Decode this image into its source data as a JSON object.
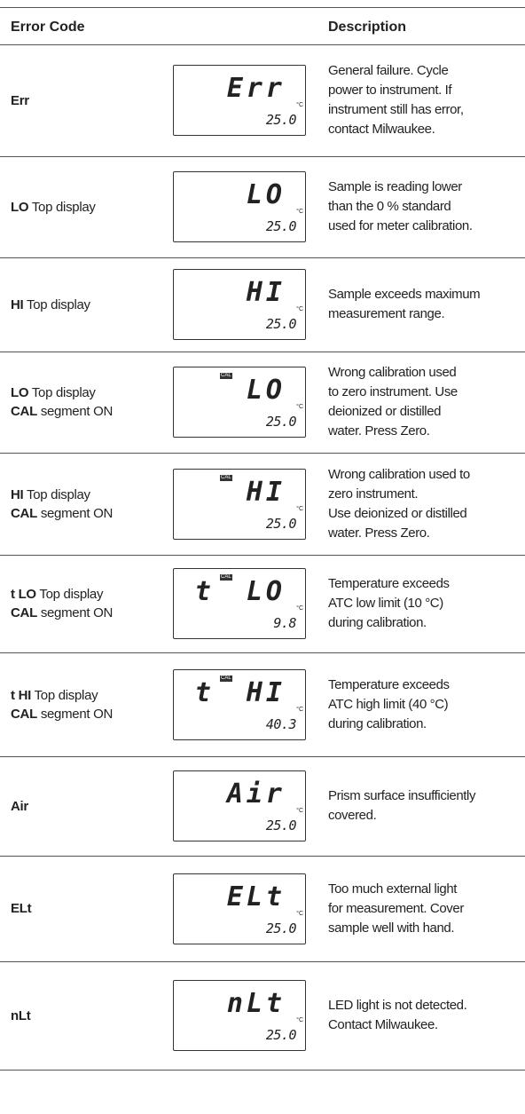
{
  "header": {
    "code": "Error Code",
    "description": "Description"
  },
  "rows": [
    {
      "code": [
        {
          "bold": "Err",
          "text": ""
        }
      ],
      "display": {
        "top": "Err",
        "cal": false,
        "temp": "25.0",
        "unit": "°C"
      },
      "description": [
        "General failure. Cycle",
        "power to instrument. If",
        "instrument still has error,",
        "contact Milwaukee."
      ]
    },
    {
      "code": [
        {
          "bold": "LO",
          "text": "Top display"
        }
      ],
      "display": {
        "top": "LO",
        "cal": false,
        "temp": "25.0",
        "unit": "°C"
      },
      "description": [
        "Sample is reading lower",
        "than the 0 % standard",
        "used for meter calibration."
      ]
    },
    {
      "code": [
        {
          "bold": "HI",
          "text": "Top display"
        }
      ],
      "display": {
        "top": "HI",
        "cal": false,
        "temp": "25.0",
        "unit": "°C"
      },
      "description": [
        "Sample exceeds maximum",
        "measurement range."
      ]
    },
    {
      "code": [
        {
          "bold": "LO",
          "text": "Top display"
        },
        {
          "bold": "CAL",
          "text": "segment ON"
        }
      ],
      "display": {
        "top": "LO",
        "cal": "CAL",
        "temp": "25.0",
        "unit": "°C"
      },
      "description": [
        "Wrong calibration used",
        "to zero instrument. Use",
        "deionized or distilled",
        "water. Press Zero."
      ]
    },
    {
      "code": [
        {
          "bold": "HI",
          "text": "Top display"
        },
        {
          "bold": "CAL",
          "text": "segment ON"
        }
      ],
      "display": {
        "top": "HI",
        "cal": "CAL",
        "temp": "25.0",
        "unit": "°C"
      },
      "description": [
        "Wrong calibration used to",
        "zero instrument.",
        "Use deionized or distilled",
        "water. Press Zero."
      ]
    },
    {
      "code": [
        {
          "bold": "t LO",
          "text": "Top display"
        },
        {
          "bold": "CAL",
          "text": "segment ON"
        }
      ],
      "display": {
        "top": "t LO",
        "cal": "CAL",
        "temp": "9.8",
        "unit": "°C"
      },
      "description": [
        "Temperature exceeds",
        "ATC low limit (10 °C)",
        "during calibration."
      ]
    },
    {
      "code": [
        {
          "bold": "t HI",
          "text": "Top display"
        },
        {
          "bold": "CAL",
          "text": "segment ON"
        }
      ],
      "display": {
        "top": "t HI",
        "cal": "CAL",
        "temp": "40.3",
        "unit": "°C"
      },
      "description": [
        "Temperature exceeds",
        "ATC high limit (40 °C)",
        "during calibration."
      ]
    },
    {
      "code": [
        {
          "bold": "Air",
          "text": ""
        }
      ],
      "display": {
        "top": "Air",
        "cal": false,
        "temp": "25.0",
        "unit": "°C"
      },
      "description": [
        "Prism surface insufficiently",
        "covered."
      ]
    },
    {
      "code": [
        {
          "bold": "ELt",
          "text": ""
        }
      ],
      "display": {
        "top": "ELt",
        "cal": false,
        "temp": "25.0",
        "unit": "°C"
      },
      "description": [
        "Too much external light",
        "for measurement. Cover",
        "sample well with hand."
      ]
    },
    {
      "code": [
        {
          "bold": "nLt",
          "text": ""
        }
      ],
      "display": {
        "top": "nLt",
        "cal": false,
        "temp": "25.0",
        "unit": "°C"
      },
      "description": [
        "LED light is not detected.",
        "Contact Milwaukee."
      ]
    }
  ]
}
